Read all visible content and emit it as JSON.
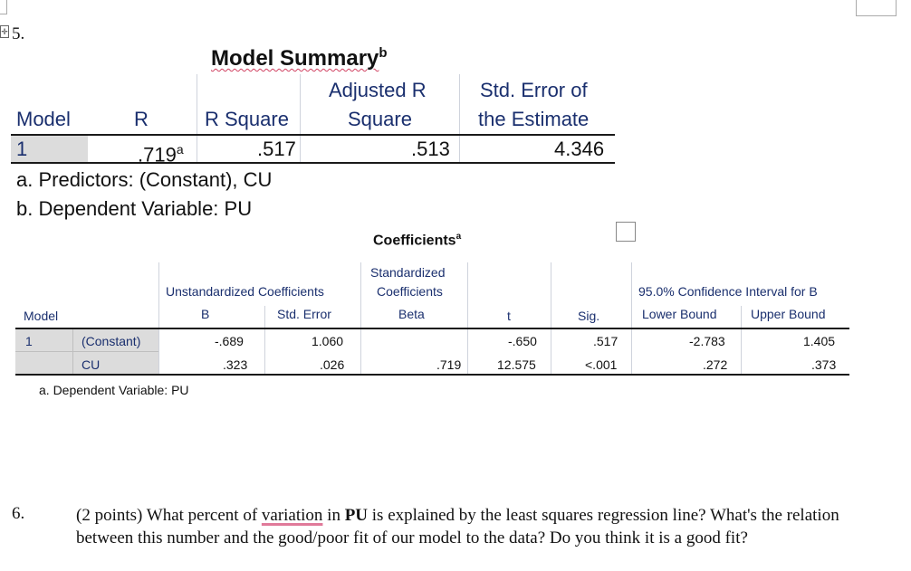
{
  "question5": {
    "number": "5."
  },
  "model_summary": {
    "title": "Model Summary",
    "title_sup": "b",
    "headers": {
      "model": "Model",
      "r": "R",
      "r_square": "R Square",
      "adj_r_line1": "Adjusted R",
      "adj_r_line2": "Square",
      "se_line1": "Std. Error of",
      "se_line2": "the Estimate"
    },
    "row": {
      "model": "1",
      "r": ".719",
      "r_sup": "a",
      "r_square": ".517",
      "adj_r_square": ".513",
      "std_error": "4.346"
    },
    "footnote_a": "a. Predictors: (Constant), CU",
    "footnote_b": "b. Dependent Variable: PU"
  },
  "coefficients": {
    "title": "Coefficients",
    "title_sup": "a",
    "headers": {
      "unstd": "Unstandardized Coefficients",
      "std_line1": "Standardized",
      "std_line2": "Coefficients",
      "ci": "95.0% Confidence Interval for B",
      "model": "Model",
      "b": "B",
      "std_error": "Std. Error",
      "beta": "Beta",
      "t": "t",
      "sig": "Sig.",
      "lower": "Lower Bound",
      "upper": "Upper Bound"
    },
    "rows": [
      {
        "model": "1",
        "term": "(Constant)",
        "b": "-.689",
        "se": "1.060",
        "beta": "",
        "t": "-.650",
        "sig": ".517",
        "lower": "-2.783",
        "upper": "1.405"
      },
      {
        "model": "",
        "term": "CU",
        "b": ".323",
        "se": ".026",
        "beta": ".719",
        "t": "12.575",
        "sig": "<.001",
        "lower": ".272",
        "upper": ".373"
      }
    ],
    "footnote_a": "a. Dependent Variable: PU"
  },
  "question6": {
    "number": "6.",
    "points": "(2 points) What percent of ",
    "word_variation": "variation",
    "in": " in ",
    "bold_pu": "PU",
    "rest": " is explained by the least squares regression line?  What's the relation between this number and the good/poor fit of our model to the data?  Do you think it is a good fit?"
  }
}
